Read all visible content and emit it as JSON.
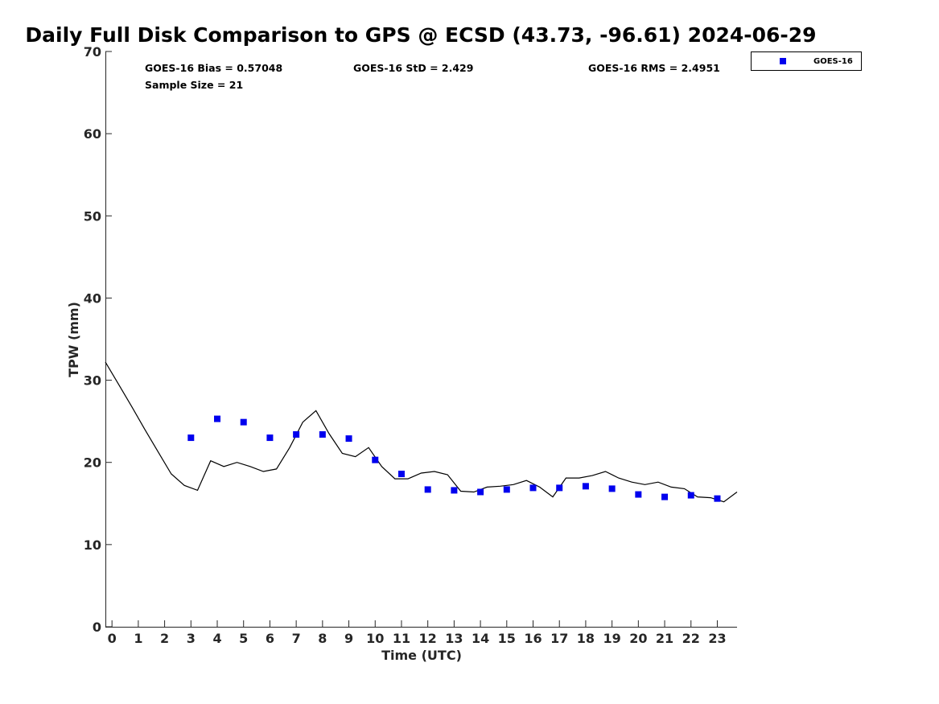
{
  "colors": {
    "marker": "#0000ee",
    "gps_line": "#000000",
    "axis": "#262626"
  },
  "chart_data": {
    "type": "scatter",
    "title": "Daily Full Disk Comparison to GPS @ ECSD (43.73, -96.61) 2024-06-29",
    "xlabel": "Time (UTC)",
    "ylabel": "TPW (mm)",
    "xlim": [
      -0.25,
      23.75
    ],
    "ylim": [
      0,
      70
    ],
    "x_ticks": [
      "0",
      "1",
      "2",
      "3",
      "4",
      "5",
      "6",
      "7",
      "8",
      "9",
      "10",
      "11",
      "12",
      "13",
      "14",
      "15",
      "16",
      "17",
      "18",
      "19",
      "20",
      "21",
      "22",
      "23"
    ],
    "y_ticks": [
      "0",
      "10",
      "20",
      "30",
      "40",
      "50",
      "60",
      "70"
    ],
    "grid": false,
    "legend_position": "top-right, outside plot",
    "stats": {
      "bias": "GOES-16 Bias = 0.57048",
      "std": "GOES-16 StD = 2.429",
      "rms": "GOES-16 RMS = 2.4951",
      "sample_size": "Sample Size = 21"
    },
    "series": [
      {
        "name": "GOES-16",
        "kind": "marker",
        "x": [
          3,
          4,
          5,
          6,
          7,
          8,
          9,
          10,
          11,
          12,
          13,
          14,
          15,
          16,
          17,
          18,
          19,
          20,
          21,
          22,
          23
        ],
        "y": [
          23.0,
          25.3,
          24.9,
          23.0,
          23.4,
          23.4,
          22.9,
          20.3,
          18.6,
          16.7,
          16.6,
          16.4,
          16.7,
          16.9,
          16.9,
          17.1,
          16.8,
          16.1,
          15.8,
          16.0,
          15.6
        ]
      },
      {
        "kind": "line",
        "x": [
          -0.25,
          0.25,
          0.75,
          1.25,
          1.75,
          2.25,
          2.75,
          3.25,
          3.75,
          4.25,
          4.75,
          5.25,
          5.75,
          6.25,
          6.75,
          7.25,
          7.75,
          8.25,
          8.75,
          9.25,
          9.75,
          10.25,
          10.75,
          11.25,
          11.75,
          12.25,
          12.75,
          13.25,
          13.75,
          14.25,
          14.75,
          15.25,
          15.75,
          16.25,
          16.75,
          17.25,
          17.75,
          18.25,
          18.75,
          19.25,
          19.75,
          20.25,
          20.75,
          21.25,
          21.75,
          22.25,
          22.75,
          23.25,
          23.75
        ],
        "y": [
          32.2,
          29.5,
          26.8,
          24.0,
          21.3,
          18.6,
          17.2,
          16.6,
          20.2,
          19.5,
          20.0,
          19.5,
          18.9,
          19.2,
          21.8,
          24.9,
          26.3,
          23.5,
          21.1,
          20.7,
          21.8,
          19.5,
          18.0,
          18.0,
          18.7,
          18.9,
          18.5,
          16.5,
          16.4,
          17.0,
          17.1,
          17.3,
          17.8,
          17.0,
          15.8,
          18.1,
          18.1,
          18.4,
          18.9,
          18.1,
          17.6,
          17.3,
          17.6,
          17.0,
          16.8,
          15.8,
          15.7,
          15.2,
          16.4
        ]
      }
    ]
  }
}
